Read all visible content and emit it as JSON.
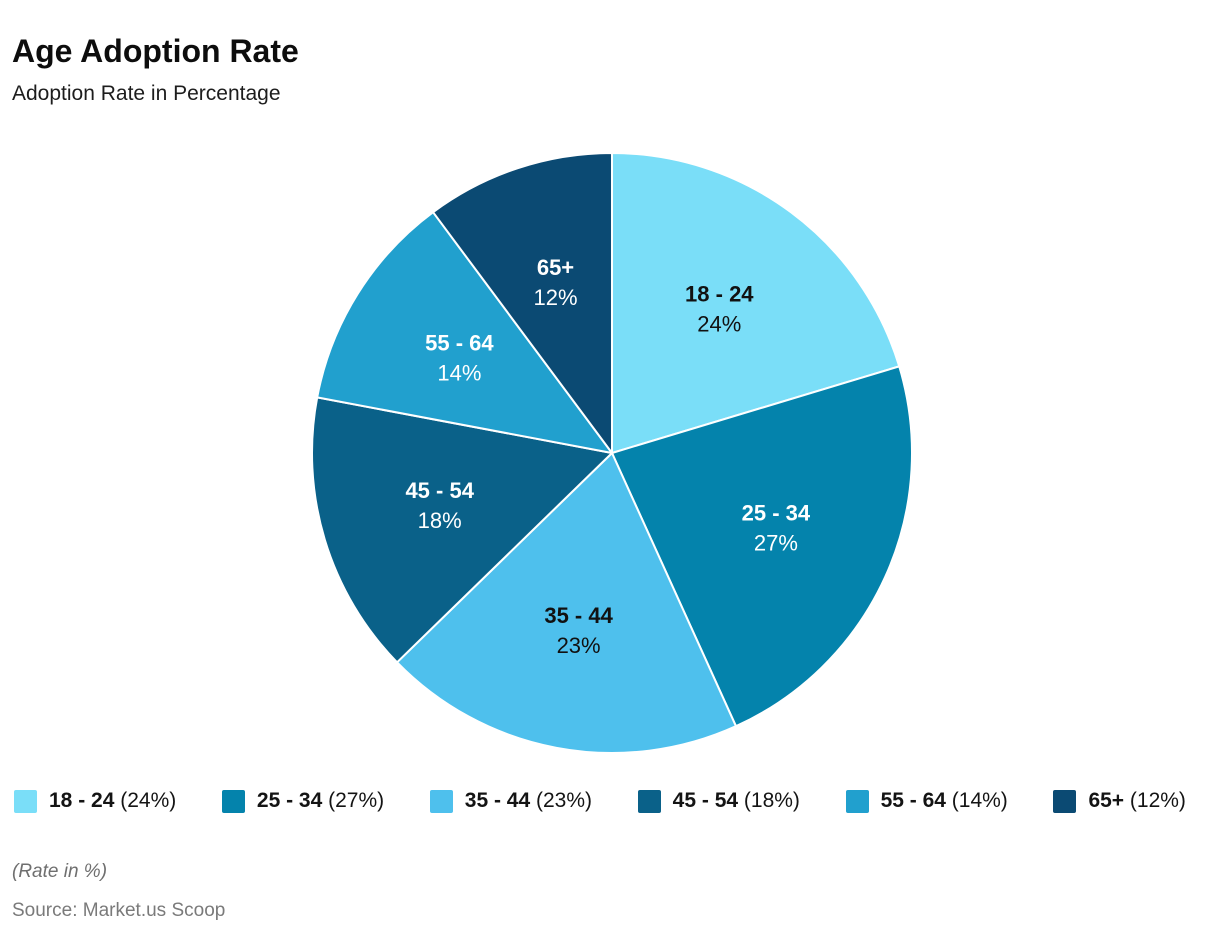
{
  "header": {
    "title": "Age Adoption Rate",
    "subtitle": "Adoption Rate in Percentage"
  },
  "chart_data": {
    "type": "pie",
    "title": "Age Adoption Rate",
    "subtitle": "Adoption Rate in Percentage",
    "unit": "%",
    "categories": [
      "18 - 24",
      "25 - 34",
      "35 - 44",
      "45 - 54",
      "55 - 64",
      "65+"
    ],
    "values": [
      24,
      27,
      23,
      18,
      14,
      12
    ],
    "slice_pct_labels": [
      "24%",
      "27%",
      "23%",
      "18%",
      "14%",
      "12%"
    ],
    "colors": [
      "#7ADEF8",
      "#0483AC",
      "#4EC0ED",
      "#0A6189",
      "#21A0CE",
      "#0B4A73"
    ],
    "label_text_colors": [
      "#111111",
      "#FFFFFF",
      "#111111",
      "#FFFFFF",
      "#FFFFFF",
      "#FFFFFF"
    ],
    "start_angle": "top",
    "direction": "clockwise",
    "legend_position": "bottom"
  },
  "legend": {
    "items": [
      {
        "label": "18 - 24",
        "value_text": " (24%)",
        "color": "#7ADEF8"
      },
      {
        "label": "25 - 34",
        "value_text": " (27%)",
        "color": "#0483AC"
      },
      {
        "label": "35 - 44",
        "value_text": " (23%)",
        "color": "#4EC0ED"
      },
      {
        "label": "45 - 54",
        "value_text": " (18%)",
        "color": "#0A6189"
      },
      {
        "label": "55 - 64",
        "value_text": " (14%)",
        "color": "#21A0CE"
      },
      {
        "label": "65+",
        "value_text": " (12%)",
        "color": "#0B4A73"
      }
    ]
  },
  "footer": {
    "note": "(Rate in %)",
    "source": "Source: Market.us Scoop"
  }
}
